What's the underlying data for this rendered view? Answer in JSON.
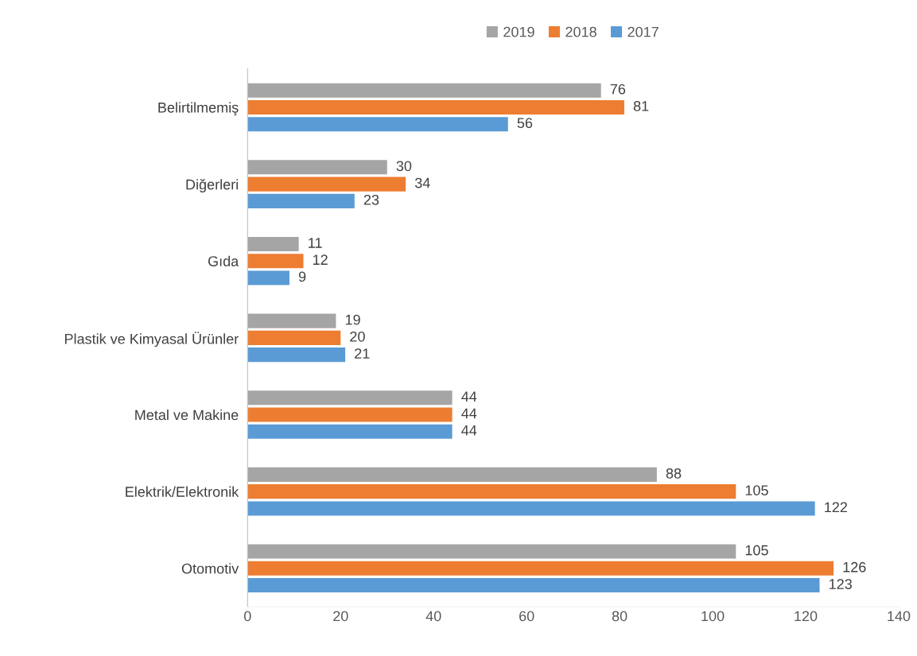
{
  "chart_data": {
    "type": "bar",
    "orientation": "horizontal",
    "categories": [
      "Belirtilmemiş",
      "Diğerleri",
      "Gıda",
      "Plastik ve Kimyasal Ürünler",
      "Metal ve Makine",
      "Elektrik/Elektronik",
      "Otomotiv"
    ],
    "series": [
      {
        "name": "2019",
        "color": "#a5a5a5",
        "values": [
          76,
          30,
          11,
          19,
          44,
          88,
          105
        ]
      },
      {
        "name": "2018",
        "color": "#ed7d31",
        "values": [
          81,
          34,
          12,
          20,
          44,
          105,
          126
        ]
      },
      {
        "name": "2017",
        "color": "#5b9bd5",
        "values": [
          56,
          23,
          9,
          21,
          44,
          122,
          123
        ]
      }
    ],
    "xlim": [
      0,
      140
    ],
    "xticks": [
      0,
      20,
      40,
      60,
      80,
      100,
      120,
      140
    ],
    "data_labels": true,
    "grid": false,
    "legend": "top"
  }
}
